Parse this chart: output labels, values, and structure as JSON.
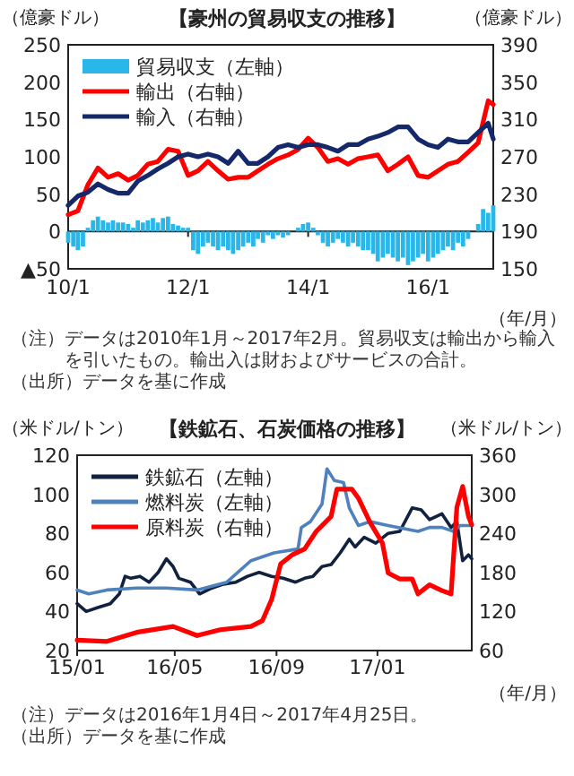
{
  "chart_data": [
    {
      "type": "bar",
      "title": "【豪州の貿易収支の推移】",
      "ylabel": "（億豪ドル）",
      "y2label": "（億豪ドル）",
      "xlabel": "（年/月）",
      "x": [
        "2010-01",
        "2010-02",
        "2010-03",
        "2010-04",
        "2010-05",
        "2010-06",
        "2010-07",
        "2010-08",
        "2010-09",
        "2010-10",
        "2010-11",
        "2010-12",
        "2011-01",
        "2011-02",
        "2011-03",
        "2011-04",
        "2011-05",
        "2011-06",
        "2011-07",
        "2011-08",
        "2011-09",
        "2011-10",
        "2011-11",
        "2011-12",
        "2012-01",
        "2012-02",
        "2012-03",
        "2012-04",
        "2012-05",
        "2012-06",
        "2012-07",
        "2012-08",
        "2012-09",
        "2012-10",
        "2012-11",
        "2012-12",
        "2013-01",
        "2013-02",
        "2013-03",
        "2013-04",
        "2013-05",
        "2013-06",
        "2013-07",
        "2013-08",
        "2013-09",
        "2013-10",
        "2013-11",
        "2013-12",
        "2014-01",
        "2014-02",
        "2014-03",
        "2014-04",
        "2014-05",
        "2014-06",
        "2014-07",
        "2014-08",
        "2014-09",
        "2014-10",
        "2014-11",
        "2014-12",
        "2015-01",
        "2015-02",
        "2015-03",
        "2015-04",
        "2015-05",
        "2015-06",
        "2015-07",
        "2015-08",
        "2015-09",
        "2015-10",
        "2015-11",
        "2015-12",
        "2016-01",
        "2016-02",
        "2016-03",
        "2016-04",
        "2016-05",
        "2016-06",
        "2016-07",
        "2016-08",
        "2016-09",
        "2016-10",
        "2016-11",
        "2016-12",
        "2017-01",
        "2017-02"
      ],
      "series": [
        {
          "name": "貿易収支（左軸）",
          "color": "#29b6e8",
          "values": [
            -15,
            -20,
            -25,
            -20,
            5,
            15,
            20,
            15,
            12,
            15,
            12,
            12,
            10,
            5,
            15,
            12,
            15,
            18,
            12,
            18,
            20,
            10,
            8,
            5,
            5,
            -25,
            -30,
            -20,
            -15,
            -20,
            -25,
            -20,
            -25,
            -30,
            -25,
            -20,
            -15,
            -20,
            -10,
            -15,
            -5,
            -10,
            -5,
            -8,
            -5,
            0,
            5,
            10,
            12,
            5,
            -5,
            -15,
            -20,
            -15,
            -10,
            -15,
            -20,
            -15,
            -20,
            -25,
            -25,
            -30,
            -40,
            -35,
            -30,
            -35,
            -40,
            -35,
            -45,
            -40,
            -35,
            -30,
            -40,
            -35,
            -30,
            -25,
            -20,
            -25,
            -15,
            -20,
            -10,
            0,
            10,
            30,
            25,
            35
          ]
        },
        {
          "name": "輸出（右軸）",
          "type": "line",
          "axis": "y2",
          "color": "#ff0000",
          "x": [
            "2010-01",
            "2010-03",
            "2010-05",
            "2010-07",
            "2010-09",
            "2010-11",
            "2011-01",
            "2011-03",
            "2011-05",
            "2011-07",
            "2011-09",
            "2011-11",
            "2012-01",
            "2012-03",
            "2012-05",
            "2012-07",
            "2012-09",
            "2012-11",
            "2013-01",
            "2013-03",
            "2013-05",
            "2013-07",
            "2013-09",
            "2013-11",
            "2014-01",
            "2014-03",
            "2014-05",
            "2014-07",
            "2014-09",
            "2014-11",
            "2015-01",
            "2015-03",
            "2015-05",
            "2015-07",
            "2015-09",
            "2015-11",
            "2016-01",
            "2016-03",
            "2016-05",
            "2016-07",
            "2016-09",
            "2016-11",
            "2017-01",
            "2017-02"
          ],
          "values": [
            208,
            212,
            240,
            258,
            248,
            252,
            245,
            250,
            262,
            265,
            278,
            276,
            250,
            255,
            265,
            255,
            246,
            248,
            248,
            255,
            262,
            268,
            272,
            278,
            290,
            280,
            265,
            268,
            262,
            268,
            270,
            272,
            255,
            262,
            270,
            250,
            248,
            255,
            262,
            265,
            275,
            285,
            330,
            326
          ]
        },
        {
          "name": "輸入（右軸）",
          "type": "line",
          "axis": "y2",
          "color": "#14286a",
          "x": [
            "2010-01",
            "2010-03",
            "2010-05",
            "2010-07",
            "2010-09",
            "2010-11",
            "2011-01",
            "2011-03",
            "2011-05",
            "2011-07",
            "2011-09",
            "2011-11",
            "2012-01",
            "2012-03",
            "2012-05",
            "2012-07",
            "2012-09",
            "2012-11",
            "2013-01",
            "2013-03",
            "2013-05",
            "2013-07",
            "2013-09",
            "2013-11",
            "2014-01",
            "2014-03",
            "2014-05",
            "2014-07",
            "2014-09",
            "2014-11",
            "2015-01",
            "2015-03",
            "2015-05",
            "2015-07",
            "2015-09",
            "2015-11",
            "2016-01",
            "2016-03",
            "2016-05",
            "2016-07",
            "2016-09",
            "2016-11",
            "2017-01",
            "2017-02"
          ],
          "values": [
            218,
            228,
            232,
            241,
            235,
            231,
            231,
            244,
            250,
            257,
            263,
            270,
            273,
            270,
            273,
            270,
            263,
            276,
            263,
            263,
            270,
            280,
            283,
            280,
            283,
            283,
            280,
            276,
            283,
            283,
            289,
            292,
            296,
            302,
            302,
            289,
            283,
            280,
            289,
            286,
            286,
            296,
            306,
            289
          ]
        }
      ],
      "xlim": [
        "2010-01",
        "2017-02"
      ],
      "xticks": [
        {
          "value": "2010-01",
          "label": "10/1"
        },
        {
          "value": "2012-01",
          "label": "12/1"
        },
        {
          "value": "2014-01",
          "label": "14/1"
        },
        {
          "value": "2016-01",
          "label": "16/1"
        }
      ],
      "ylim": [
        -50,
        250
      ],
      "yticks": [
        {
          "value": -50,
          "label": "▲50"
        },
        0,
        50,
        100,
        150,
        200,
        250
      ],
      "y2lim": [
        150,
        390
      ],
      "y2ticks": [
        150,
        190,
        230,
        270,
        310,
        350,
        390
      ],
      "ref_lines": [
        {
          "axis": "y",
          "value": 0
        }
      ],
      "legend": "top left",
      "annotations": [
        "（注）データは2010年1月～2017年2月。貿易収支は輸出から輸入を引いたもの。輸出入は財およびサービスの合計。",
        "（出所）データを基に作成"
      ]
    },
    {
      "type": "line",
      "title": "【鉄鉱石、石炭価格の推移】",
      "ylabel": "（米ドル/トン）",
      "y2label": "（米ドル/トン）",
      "xlabel": "（年/月）",
      "series": [
        {
          "name": "鉄鉱石（左軸）",
          "color": "#10223f",
          "x": [
            "2016-01-04",
            "2016-01-15",
            "2016-01-29",
            "2016-02-13",
            "2016-02-24",
            "2016-03-02",
            "2016-03-09",
            "2016-03-20",
            "2016-03-31",
            "2016-04-11",
            "2016-04-21",
            "2016-04-29",
            "2016-05-06",
            "2016-05-20",
            "2016-05-31",
            "2016-06-15",
            "2016-06-29",
            "2016-07-14",
            "2016-07-28",
            "2016-08-11",
            "2016-08-26",
            "2016-09-09",
            "2016-09-24",
            "2016-10-05",
            "2016-10-15",
            "2016-10-26",
            "2016-11-06",
            "2016-11-17",
            "2016-11-28",
            "2016-12-05",
            "2016-12-16",
            "2016-12-30",
            "2017-01-14",
            "2017-01-28",
            "2017-02-12",
            "2017-02-23",
            "2017-03-05",
            "2017-03-20",
            "2017-03-31",
            "2017-04-07",
            "2017-04-14",
            "2017-04-21",
            "2017-04-25"
          ],
          "values": [
            44,
            40,
            42,
            44,
            49,
            58,
            57,
            58,
            55,
            60,
            67,
            63,
            57,
            55,
            49,
            52,
            54,
            55,
            58,
            60,
            58,
            57,
            55,
            57,
            58,
            63,
            64,
            70,
            77,
            73,
            78,
            75,
            80,
            81,
            93,
            92,
            87,
            90,
            83,
            86,
            66,
            69,
            67
          ]
        },
        {
          "name": "燃料炭（左軸）",
          "color": "#4f81bd",
          "x": [
            "2016-01-04",
            "2016-01-18",
            "2016-02-09",
            "2016-03-16",
            "2016-04-21",
            "2016-05-28",
            "2016-07-03",
            "2016-08-01",
            "2016-08-29",
            "2016-09-27",
            "2016-10-01",
            "2016-10-12",
            "2016-10-26",
            "2016-11-01",
            "2016-11-10",
            "2016-11-21",
            "2016-11-28",
            "2016-12-09",
            "2016-12-23",
            "2017-01-14",
            "2017-02-19",
            "2017-03-05",
            "2017-03-20",
            "2017-04-03",
            "2017-04-11",
            "2017-04-25"
          ],
          "values": [
            51,
            49,
            51,
            52,
            52,
            51,
            55,
            66,
            70,
            72,
            83,
            86,
            95,
            113,
            107,
            106,
            93,
            84,
            86,
            84,
            81,
            83,
            83,
            81,
            84,
            84
          ]
        },
        {
          "name": "原料炭（右軸）",
          "axis": "y2",
          "color": "#ff0000",
          "x": [
            "2016-01-04",
            "2016-02-09",
            "2016-03-16",
            "2016-04-29",
            "2016-05-28",
            "2016-06-25",
            "2016-08-01",
            "2016-08-15",
            "2016-08-26",
            "2016-09-06",
            "2016-09-20",
            "2016-10-05",
            "2016-10-19",
            "2016-11-06",
            "2016-11-13",
            "2016-12-01",
            "2016-12-09",
            "2016-12-23",
            "2017-01-07",
            "2017-01-14",
            "2017-01-28",
            "2017-02-12",
            "2017-02-19",
            "2017-03-05",
            "2017-03-20",
            "2017-03-31",
            "2017-04-07",
            "2017-04-14",
            "2017-04-21",
            "2017-04-25"
          ],
          "values": [
            76,
            74,
            88,
            97,
            83,
            92,
            97,
            106,
            138,
            193,
            207,
            216,
            243,
            266,
            308,
            308,
            294,
            257,
            225,
            179,
            170,
            170,
            147,
            161,
            152,
            147,
            280,
            312,
            266,
            253
          ]
        }
      ],
      "xlim": [
        "2016-01-04",
        "2017-04-25"
      ],
      "xticks": [
        {
          "value": "2016-01-04",
          "label": "15/01"
        },
        {
          "value": "2016-05-01",
          "label": "16/05"
        },
        {
          "value": "2016-09-01",
          "label": "16/09"
        },
        {
          "value": "2017-01-01",
          "label": "17/01"
        }
      ],
      "ylim": [
        20,
        120
      ],
      "yticks": [
        20,
        40,
        60,
        80,
        100,
        120
      ],
      "y2lim": [
        60,
        360
      ],
      "y2ticks": [
        60,
        120,
        180,
        240,
        300,
        360
      ],
      "legend": "top left",
      "annotations": [
        "（注）データは2016年1月4日～2017年4月25日。",
        "（出所）データを基に作成"
      ]
    }
  ]
}
